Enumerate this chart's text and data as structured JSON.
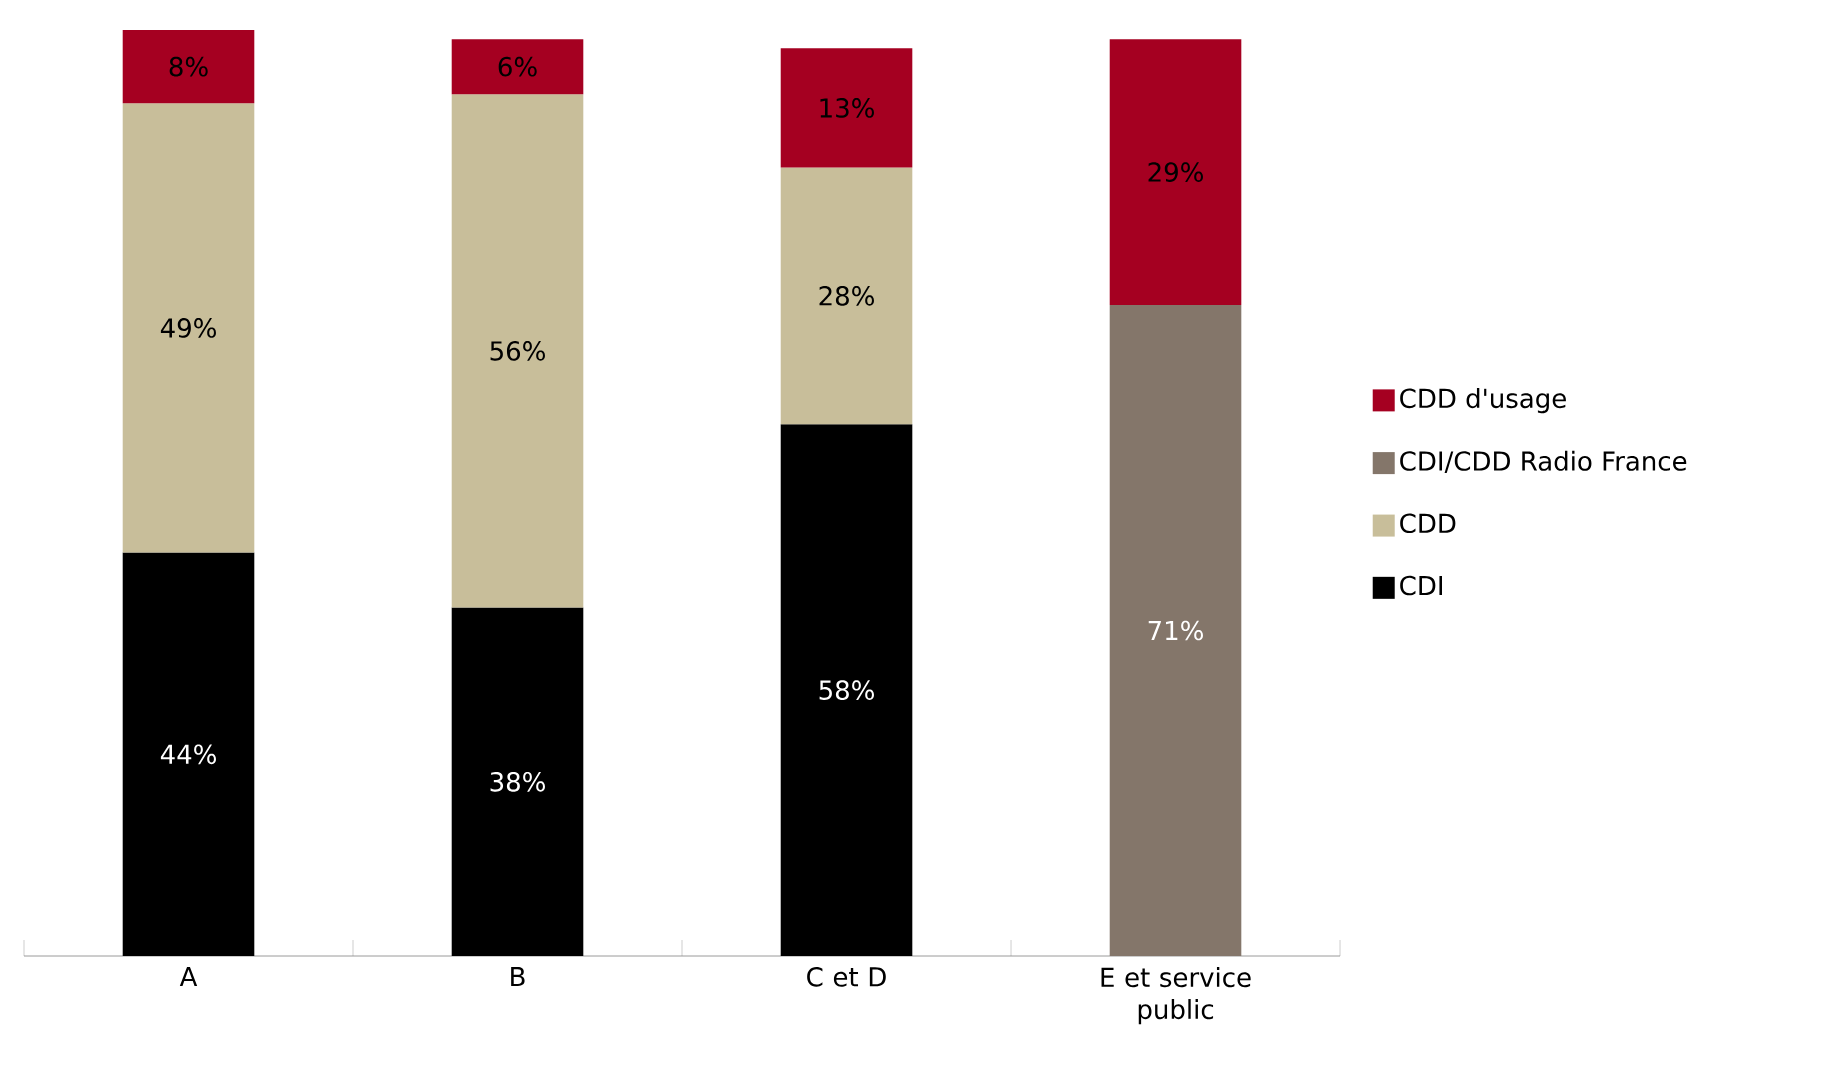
{
  "chart_data": {
    "type": "bar",
    "stacked": true,
    "legend": "right",
    "categories": [
      "A",
      "B",
      "C et D",
      "E et service public"
    ],
    "series": [
      {
        "name": "CDI",
        "color": "#000000",
        "values": [
          44,
          38,
          58,
          null
        ],
        "value_labels": [
          "44%",
          "38%",
          "58%",
          null
        ]
      },
      {
        "name": "CDD",
        "color": "#c8be9a",
        "values": [
          49,
          56,
          28,
          null
        ],
        "value_labels": [
          "49%",
          "56%",
          "28%",
          null
        ]
      },
      {
        "name": "CDI/CDD Radio France",
        "color": "#84766a",
        "values": [
          null,
          null,
          null,
          71
        ],
        "value_labels": [
          null,
          null,
          null,
          "71%"
        ]
      },
      {
        "name": "CDD d'usage",
        "color": "#a50021",
        "values": [
          8,
          6,
          13,
          29
        ],
        "value_labels": [
          "8%",
          "6%",
          "13%",
          "29%"
        ]
      }
    ]
  }
}
